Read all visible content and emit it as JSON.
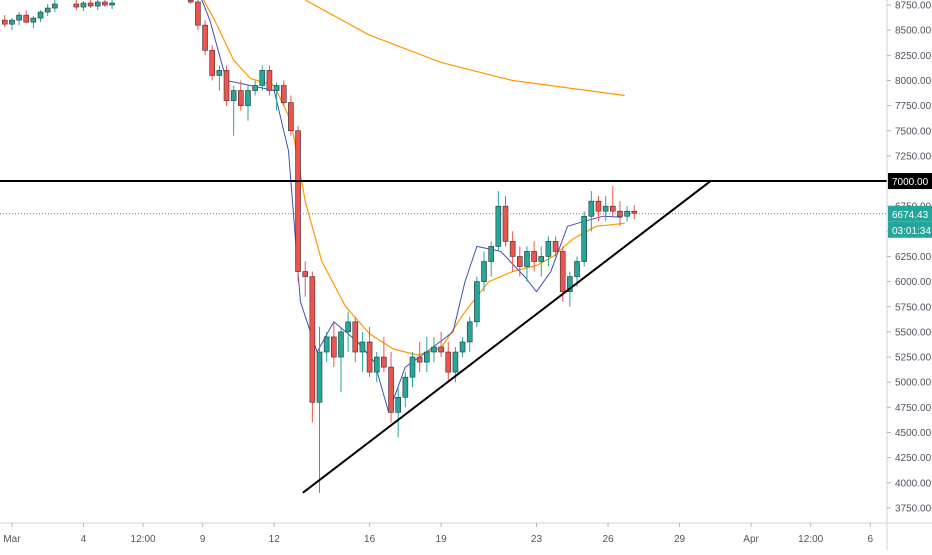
{
  "chart_data": {
    "type": "candlestick",
    "y_ticks": [
      "8750.00",
      "8500.00",
      "8250.00",
      "8000.00",
      "7750.00",
      "7500.00",
      "7250.00",
      "7000.00",
      "6750.00",
      "6500.00",
      "6250.00",
      "6000.00",
      "5750.00",
      "5500.00",
      "5250.00",
      "5000.00",
      "4750.00",
      "4500.00",
      "4250.00",
      "4000.00",
      "3750.00"
    ],
    "y_range": [
      3600,
      8800
    ],
    "x_ticks": [
      {
        "label": "Mar",
        "x": 0
      },
      {
        "label": "4",
        "x": 3
      },
      {
        "label": "12:00",
        "x": 5.5
      },
      {
        "label": "9",
        "x": 8
      },
      {
        "label": "12",
        "x": 11
      },
      {
        "label": "16",
        "x": 15
      },
      {
        "label": "19",
        "x": 18
      },
      {
        "label": "23",
        "x": 22
      },
      {
        "label": "26",
        "x": 25
      },
      {
        "label": "29",
        "x": 28
      },
      {
        "label": "Apr",
        "x": 31
      },
      {
        "label": "12:00",
        "x": 33.5
      },
      {
        "label": "6",
        "x": 36
      }
    ],
    "x_range": [
      -0.5,
      36.7
    ],
    "current_price": {
      "value": 6674.43,
      "label": "6674.43",
      "countdown": "03:01:34",
      "color": "#26a69a"
    },
    "resistance": {
      "value": 7000,
      "label": "7000.00",
      "x_start": -0.5,
      "x_end": 36.7,
      "color": "#000000"
    },
    "trendline": {
      "points": [
        [
          12.2,
          3900
        ],
        [
          29.3,
          7000
        ]
      ],
      "color": "#000000"
    },
    "colors": {
      "up": "#26a69a",
      "down": "#ef5350",
      "wick_up": "#26a69a",
      "wick_down": "#ef5350",
      "ma_short": "#3f51b5",
      "ma_mid": "#ff9800",
      "ma_long": "#ff9800"
    },
    "ma_long": [
      [
        12.3,
        8800
      ],
      [
        15,
        8450
      ],
      [
        18,
        8180
      ],
      [
        21,
        8000
      ],
      [
        23.5,
        7920
      ],
      [
        25.7,
        7850
      ]
    ],
    "ma_mid": [
      [
        7.8,
        8900
      ],
      [
        8.5,
        8600
      ],
      [
        9.3,
        8200
      ],
      [
        10,
        8020
      ],
      [
        11,
        7950
      ],
      [
        11.7,
        7600
      ],
      [
        12.3,
        6800
      ],
      [
        13,
        6200
      ],
      [
        14,
        5750
      ],
      [
        15,
        5480
      ],
      [
        16,
        5330
      ],
      [
        17,
        5270
      ],
      [
        18,
        5340
      ],
      [
        19,
        5700
      ],
      [
        20,
        6000
      ],
      [
        21,
        6100
      ],
      [
        22,
        6160
      ],
      [
        22.7,
        6250
      ],
      [
        23.5,
        6420
      ],
      [
        24.5,
        6550
      ],
      [
        25.7,
        6580
      ]
    ],
    "ma_short": [
      [
        7.8,
        8900
      ],
      [
        8.3,
        8600
      ],
      [
        9,
        8000
      ],
      [
        10,
        7950
      ],
      [
        11,
        7900
      ],
      [
        11.6,
        7300
      ],
      [
        12.1,
        5800
      ],
      [
        12.8,
        5300
      ],
      [
        13.5,
        5600
      ],
      [
        14.5,
        5400
      ],
      [
        15.2,
        5200
      ],
      [
        15.8,
        4700
      ],
      [
        16.5,
        5150
      ],
      [
        17.5,
        5320
      ],
      [
        18.5,
        5500
      ],
      [
        19,
        6000
      ],
      [
        19.5,
        6350
      ],
      [
        20.5,
        6300
      ],
      [
        21.5,
        6050
      ],
      [
        22,
        5900
      ],
      [
        22.6,
        6100
      ],
      [
        23.3,
        6550
      ],
      [
        24,
        6600
      ],
      [
        24.8,
        6650
      ],
      [
        25.6,
        6640
      ]
    ],
    "candles": [
      [
        -0.3,
        8600,
        8650,
        8530,
        8560
      ],
      [
        0,
        8560,
        8620,
        8500,
        8600
      ],
      [
        0.3,
        8600,
        8680,
        8550,
        8650
      ],
      [
        0.6,
        8650,
        8700,
        8570,
        8580
      ],
      [
        0.9,
        8580,
        8640,
        8520,
        8620
      ],
      [
        1.2,
        8620,
        8700,
        8580,
        8680
      ],
      [
        1.5,
        8680,
        8760,
        8640,
        8720
      ],
      [
        1.8,
        8720,
        8800,
        8680,
        8760
      ],
      [
        2.7,
        8760,
        8820,
        8700,
        8730
      ],
      [
        3.0,
        8730,
        8790,
        8690,
        8770
      ],
      [
        3.3,
        8770,
        8820,
        8720,
        8740
      ],
      [
        3.6,
        8740,
        8800,
        8700,
        8780
      ],
      [
        3.9,
        8780,
        8830,
        8730,
        8750
      ],
      [
        4.2,
        8750,
        8800,
        8710,
        8770
      ],
      [
        7.5,
        8800,
        8860,
        8760,
        8780
      ],
      [
        7.8,
        8780,
        8830,
        8500,
        8550
      ],
      [
        8.1,
        8550,
        8600,
        8250,
        8300
      ],
      [
        8.4,
        8300,
        8350,
        8000,
        8050
      ],
      [
        8.7,
        8050,
        8150,
        7900,
        8100
      ],
      [
        9.0,
        8100,
        8150,
        7750,
        7800
      ],
      [
        9.3,
        7800,
        7950,
        7450,
        7900
      ],
      [
        9.6,
        7900,
        8000,
        7700,
        7750
      ],
      [
        9.9,
        7750,
        7950,
        7600,
        7900
      ],
      [
        10.2,
        7900,
        8000,
        7850,
        7950
      ],
      [
        10.5,
        7950,
        8150,
        7900,
        8100
      ],
      [
        10.8,
        8100,
        8150,
        7850,
        7900
      ],
      [
        11.1,
        7900,
        7980,
        7700,
        7950
      ],
      [
        11.4,
        7950,
        8000,
        7750,
        7780
      ],
      [
        11.7,
        7780,
        7850,
        7450,
        7500
      ],
      [
        12.0,
        7500,
        7550,
        6000,
        6100
      ],
      [
        12.3,
        6100,
        6200,
        5850,
        6050
      ],
      [
        12.6,
        6050,
        6100,
        4600,
        4800
      ],
      [
        12.9,
        4800,
        5550,
        3900,
        5300
      ],
      [
        13.2,
        5300,
        5500,
        5200,
        5450
      ],
      [
        13.5,
        5450,
        5600,
        5150,
        5250
      ],
      [
        13.8,
        5250,
        5550,
        4900,
        5500
      ],
      [
        14.1,
        5500,
        5700,
        5300,
        5600
      ],
      [
        14.4,
        5600,
        5650,
        5200,
        5300
      ],
      [
        14.7,
        5300,
        5500,
        5100,
        5400
      ],
      [
        15.0,
        5400,
        5550,
        5050,
        5100
      ],
      [
        15.3,
        5100,
        5300,
        5000,
        5250
      ],
      [
        15.6,
        5250,
        5450,
        5100,
        5150
      ],
      [
        15.9,
        5150,
        5300,
        4600,
        4700
      ],
      [
        16.2,
        4700,
        4950,
        4450,
        4850
      ],
      [
        16.5,
        4850,
        5100,
        4750,
        5050
      ],
      [
        16.8,
        5050,
        5300,
        4950,
        5250
      ],
      [
        17.1,
        5250,
        5400,
        5100,
        5200
      ],
      [
        17.4,
        5200,
        5450,
        5100,
        5300
      ],
      [
        17.7,
        5300,
        5450,
        5200,
        5350
      ],
      [
        18.0,
        5350,
        5500,
        5250,
        5300
      ],
      [
        18.3,
        5300,
        5400,
        5000,
        5100
      ],
      [
        18.6,
        5100,
        5350,
        5000,
        5300
      ],
      [
        18.9,
        5300,
        5450,
        5250,
        5400
      ],
      [
        19.2,
        5400,
        5650,
        5300,
        5600
      ],
      [
        19.5,
        5600,
        6050,
        5550,
        6000
      ],
      [
        19.8,
        6000,
        6300,
        5900,
        6200
      ],
      [
        20.1,
        6200,
        6400,
        6050,
        6350
      ],
      [
        20.4,
        6350,
        6900,
        6300,
        6750
      ],
      [
        20.7,
        6750,
        6850,
        6350,
        6400
      ],
      [
        21.0,
        6400,
        6500,
        6100,
        6250
      ],
      [
        21.3,
        6250,
        6350,
        6050,
        6150
      ],
      [
        21.6,
        6150,
        6350,
        6000,
        6300
      ],
      [
        21.9,
        6300,
        6400,
        6100,
        6200
      ],
      [
        22.2,
        6200,
        6350,
        6050,
        6250
      ],
      [
        22.5,
        6250,
        6450,
        6150,
        6400
      ],
      [
        22.8,
        6400,
        6450,
        6250,
        6300
      ],
      [
        23.1,
        6300,
        6350,
        5800,
        5900
      ],
      [
        23.4,
        5900,
        6100,
        5750,
        6050
      ],
      [
        23.7,
        6050,
        6250,
        5950,
        6200
      ],
      [
        24.0,
        6200,
        6700,
        6150,
        6650
      ],
      [
        24.3,
        6650,
        6900,
        6500,
        6800
      ],
      [
        24.6,
        6800,
        6850,
        6600,
        6700
      ],
      [
        24.9,
        6700,
        6850,
        6600,
        6750
      ],
      [
        25.2,
        6750,
        6950,
        6650,
        6700
      ],
      [
        25.5,
        6700,
        6800,
        6550,
        6650
      ],
      [
        25.8,
        6650,
        6750,
        6600,
        6700
      ],
      [
        26.1,
        6700,
        6760,
        6620,
        6680
      ]
    ]
  }
}
